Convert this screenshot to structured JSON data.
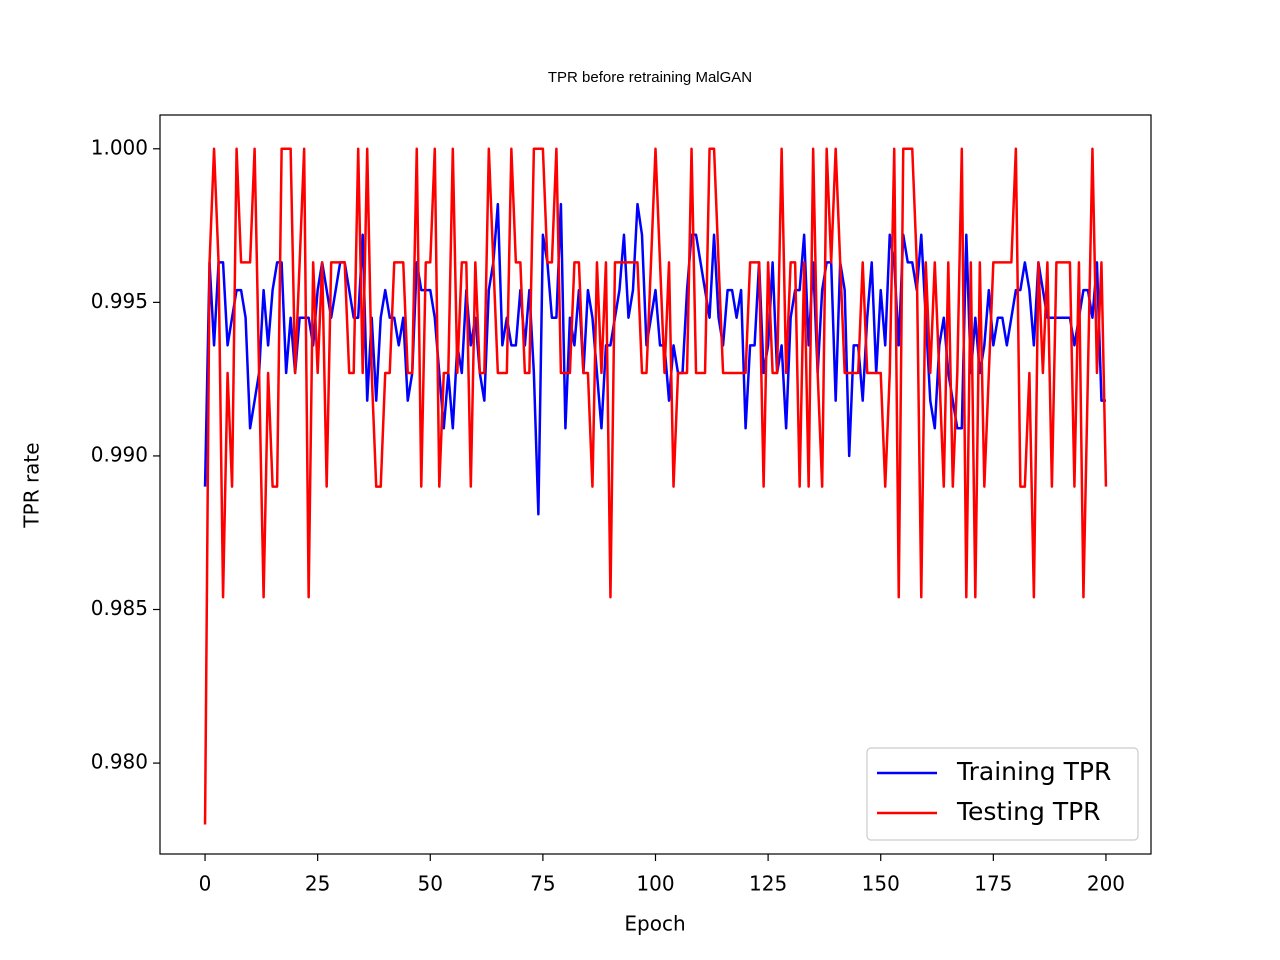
{
  "chart_data": {
    "type": "line",
    "title": "TPR before retraining MalGAN",
    "x_label": "Epoch",
    "y_label": "TPR rate",
    "x": [
      0,
      1,
      2,
      3,
      4,
      5,
      6,
      7,
      8,
      9,
      10,
      11,
      12,
      13,
      14,
      15,
      16,
      17,
      18,
      19,
      20,
      21,
      22,
      23,
      24,
      25,
      26,
      27,
      28,
      29,
      30,
      31,
      32,
      33,
      34,
      35,
      36,
      37,
      38,
      39,
      40,
      41,
      42,
      43,
      44,
      45,
      46,
      47,
      48,
      49,
      50,
      51,
      52,
      53,
      54,
      55,
      56,
      57,
      58,
      59,
      60,
      61,
      62,
      63,
      64,
      65,
      66,
      67,
      68,
      69,
      70,
      71,
      72,
      73,
      74,
      75,
      76,
      77,
      78,
      79,
      80,
      81,
      82,
      83,
      84,
      85,
      86,
      87,
      88,
      89,
      90,
      91,
      92,
      93,
      94,
      95,
      96,
      97,
      98,
      99,
      100,
      101,
      102,
      103,
      104,
      105,
      106,
      107,
      108,
      109,
      110,
      111,
      112,
      113,
      114,
      115,
      116,
      117,
      118,
      119,
      120,
      121,
      122,
      123,
      124,
      125,
      126,
      127,
      128,
      129,
      130,
      131,
      132,
      133,
      134,
      135,
      136,
      137,
      138,
      139,
      140,
      141,
      142,
      143,
      144,
      145,
      146,
      147,
      148,
      149,
      150,
      151,
      152,
      153,
      154,
      155,
      156,
      157,
      158,
      159,
      160,
      161,
      162,
      163,
      164,
      165,
      166,
      167,
      168,
      169,
      170,
      171,
      172,
      173,
      174,
      175,
      176,
      177,
      178,
      179,
      180,
      181,
      182,
      183,
      184,
      185,
      186,
      187,
      188,
      189,
      190,
      191,
      192,
      193,
      194,
      195,
      196,
      197,
      198,
      199,
      200
    ],
    "series": [
      {
        "name": "Training TPR",
        "color": "#0000ff",
        "values": [
          0.989,
          0.9963,
          0.9936,
          0.9963,
          0.9963,
          0.9936,
          0.9945,
          0.9954,
          0.9954,
          0.9945,
          0.9909,
          0.9918,
          0.9927,
          0.9954,
          0.9936,
          0.9954,
          0.9963,
          0.9963,
          0.9927,
          0.9945,
          0.9927,
          0.9945,
          0.9945,
          0.9945,
          0.9936,
          0.9954,
          0.9963,
          0.9954,
          0.9945,
          0.9954,
          0.9963,
          0.9963,
          0.9954,
          0.9945,
          0.9945,
          0.9972,
          0.9918,
          0.9945,
          0.9918,
          0.9945,
          0.9954,
          0.9945,
          0.9945,
          0.9936,
          0.9945,
          0.9918,
          0.9927,
          0.9963,
          0.9954,
          0.9954,
          0.9954,
          0.9945,
          0.9927,
          0.9909,
          0.9927,
          0.9909,
          0.9936,
          0.9927,
          0.9954,
          0.9936,
          0.9945,
          0.9927,
          0.9918,
          0.9954,
          0.9963,
          0.9982,
          0.9936,
          0.9945,
          0.9936,
          0.9936,
          0.9954,
          0.9936,
          0.9954,
          0.9927,
          0.9881,
          0.9972,
          0.9963,
          0.9945,
          0.9945,
          0.9982,
          0.9909,
          0.9945,
          0.9936,
          0.9954,
          0.9927,
          0.9954,
          0.9945,
          0.9927,
          0.9909,
          0.9936,
          0.9936,
          0.9945,
          0.9954,
          0.9972,
          0.9945,
          0.9954,
          0.9982,
          0.9972,
          0.9936,
          0.9945,
          0.9954,
          0.9936,
          0.9936,
          0.9918,
          0.9936,
          0.9927,
          0.9927,
          0.9954,
          0.9972,
          0.9972,
          0.9963,
          0.9954,
          0.9945,
          0.9972,
          0.9945,
          0.9936,
          0.9954,
          0.9954,
          0.9945,
          0.9954,
          0.9909,
          0.9936,
          0.9936,
          0.9963,
          0.9927,
          0.9936,
          0.9963,
          0.9927,
          0.9936,
          0.9909,
          0.9945,
          0.9954,
          0.9954,
          0.9972,
          0.9936,
          0.9963,
          0.9927,
          0.9954,
          0.9963,
          0.9963,
          0.9918,
          0.9963,
          0.9954,
          0.99,
          0.9936,
          0.9936,
          0.9918,
          0.9945,
          0.9963,
          0.9927,
          0.9954,
          0.9936,
          0.9972,
          0.9963,
          0.9936,
          0.9972,
          0.9963,
          0.9963,
          0.9954,
          0.9972,
          0.9945,
          0.9918,
          0.9909,
          0.9936,
          0.9945,
          0.9927,
          0.9918,
          0.9909,
          0.9909,
          0.9972,
          0.9927,
          0.9945,
          0.9927,
          0.9936,
          0.9954,
          0.9936,
          0.9945,
          0.9945,
          0.9936,
          0.9945,
          0.9954,
          0.9954,
          0.9963,
          0.9954,
          0.9936,
          0.9963,
          0.9954,
          0.9945,
          0.9945,
          0.9945,
          0.9945,
          0.9945,
          0.9945,
          0.9936,
          0.9945,
          0.9954,
          0.9954,
          0.9945,
          0.9963,
          0.9918,
          0.9918
        ]
      },
      {
        "name": "Testing TPR",
        "color": "#ff0000",
        "values": [
          0.978,
          0.9963,
          1.0,
          0.9963,
          0.9854,
          0.9927,
          0.989,
          1.0,
          0.9963,
          0.9963,
          0.9963,
          1.0,
          0.9927,
          0.9854,
          0.9927,
          0.989,
          0.989,
          1.0,
          1.0,
          1.0,
          0.9927,
          0.9963,
          1.0,
          0.9854,
          0.9963,
          0.9927,
          0.9963,
          0.989,
          0.9963,
          0.9963,
          0.9963,
          0.9963,
          0.9927,
          0.9927,
          1.0,
          0.9927,
          1.0,
          0.9927,
          0.989,
          0.989,
          0.9927,
          0.9927,
          0.9963,
          0.9963,
          0.9963,
          0.9927,
          0.9927,
          1.0,
          0.989,
          0.9963,
          0.9963,
          1.0,
          0.989,
          0.9927,
          0.9927,
          1.0,
          0.9927,
          0.9963,
          0.9963,
          0.989,
          0.9963,
          0.9927,
          0.9927,
          1.0,
          0.9963,
          0.9927,
          0.9927,
          0.9927,
          1.0,
          0.9963,
          0.9963,
          0.9927,
          0.9927,
          1.0,
          1.0,
          1.0,
          0.9963,
          0.9963,
          1.0,
          0.9927,
          0.9927,
          0.9927,
          0.9963,
          0.9963,
          0.9927,
          0.9927,
          0.989,
          0.9963,
          0.9927,
          0.9963,
          0.9854,
          0.9963,
          0.9963,
          0.9963,
          0.9963,
          0.9963,
          0.9963,
          0.9927,
          0.9927,
          0.9963,
          1.0,
          0.9963,
          0.9927,
          0.9963,
          0.989,
          0.9927,
          0.9927,
          0.9927,
          1.0,
          0.9927,
          0.9927,
          0.9927,
          1.0,
          1.0,
          0.9963,
          0.9927,
          0.9927,
          0.9927,
          0.9927,
          0.9927,
          0.9927,
          0.9963,
          0.9963,
          0.9963,
          0.989,
          0.9963,
          0.9927,
          0.9927,
          1.0,
          0.9927,
          0.9963,
          0.9963,
          0.989,
          0.9963,
          0.989,
          1.0,
          0.9927,
          0.989,
          1.0,
          0.9963,
          1.0,
          0.9963,
          0.9927,
          0.9927,
          0.9927,
          0.9927,
          0.9963,
          0.9927,
          0.9927,
          0.9927,
          0.9927,
          0.989,
          0.9927,
          1.0,
          0.9854,
          1.0,
          1.0,
          1.0,
          0.9963,
          0.9854,
          0.9963,
          0.9927,
          0.9963,
          0.9927,
          0.989,
          0.9963,
          0.989,
          0.9927,
          1.0,
          0.9854,
          0.9963,
          0.9854,
          0.9963,
          0.989,
          0.9927,
          0.9963,
          0.9963,
          0.9963,
          0.9963,
          0.9963,
          1.0,
          0.989,
          0.989,
          0.9927,
          0.9854,
          0.9963,
          0.9927,
          0.9963,
          0.989,
          0.9963,
          0.9963,
          0.9963,
          0.9963,
          0.989,
          0.9963,
          0.9854,
          0.9927,
          1.0,
          0.9927,
          0.9963,
          0.989
        ]
      }
    ],
    "xlim": [
      -10,
      210
    ],
    "ylim": [
      0.97704,
      1.0011
    ],
    "xticks": [
      0,
      25,
      50,
      75,
      100,
      125,
      150,
      175,
      200
    ],
    "yticks": [
      {
        "value": 0.98,
        "label": "0.980"
      },
      {
        "value": 0.985,
        "label": "0.985"
      },
      {
        "value": 0.99,
        "label": "0.990"
      },
      {
        "value": 0.995,
        "label": "0.995"
      },
      {
        "value": 1.0,
        "label": "1.000"
      }
    ],
    "legend": "lower right"
  }
}
